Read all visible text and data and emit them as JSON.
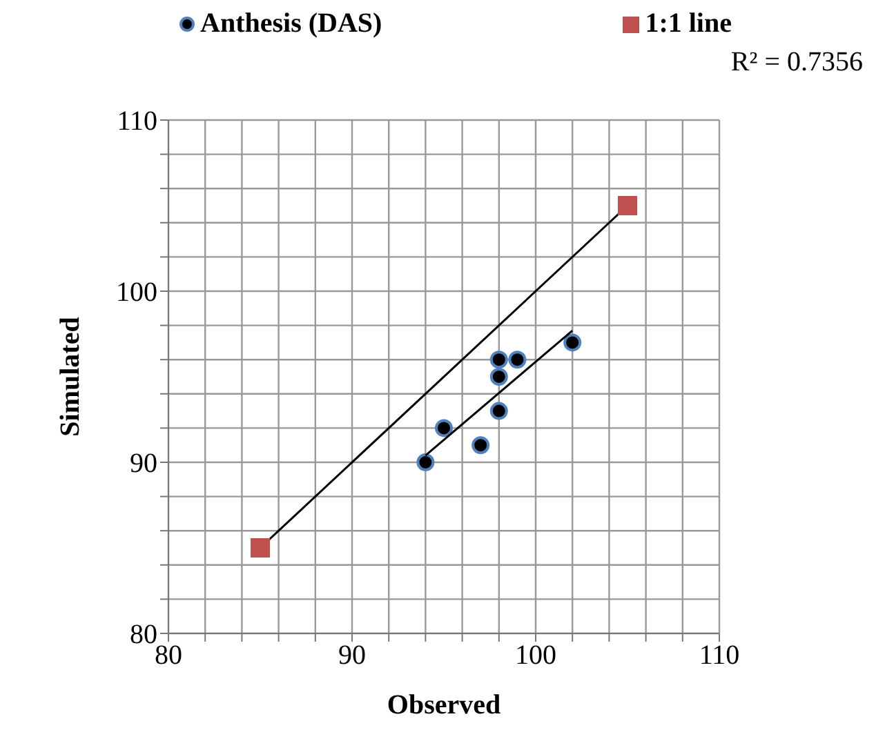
{
  "chart_data": {
    "type": "scatter",
    "xlabel": "Observed",
    "ylabel": "Simulated",
    "xlim": [
      80,
      110
    ],
    "ylim": [
      80,
      110
    ],
    "xticks": [
      80,
      {
        "value": 82,
        "label": null
      },
      {
        "value": 84,
        "label": null
      },
      {
        "value": 86,
        "label": null
      },
      {
        "value": 88,
        "label": null
      },
      90,
      {
        "value": 92,
        "label": null
      },
      {
        "value": 94,
        "label": null
      },
      {
        "value": 96,
        "label": null
      },
      {
        "value": 98,
        "label": null
      },
      100,
      {
        "value": 102,
        "label": null
      },
      {
        "value": 104,
        "label": null
      },
      {
        "value": 106,
        "label": null
      },
      {
        "value": 108,
        "label": null
      },
      110
    ],
    "yticks": [
      80,
      {
        "value": 82,
        "label": null
      },
      {
        "value": 84,
        "label": null
      },
      {
        "value": 86,
        "label": null
      },
      {
        "value": 88,
        "label": null
      },
      90,
      {
        "value": 92,
        "label": null
      },
      {
        "value": 94,
        "label": null
      },
      {
        "value": 96,
        "label": null
      },
      {
        "value": 98,
        "label": null
      },
      100,
      {
        "value": 102,
        "label": null
      },
      {
        "value": 104,
        "label": null
      },
      {
        "value": 106,
        "label": null
      },
      {
        "value": 108,
        "label": null
      },
      110
    ],
    "grid": true,
    "legend": "top",
    "series": [
      {
        "name": "Anthesis (DAS)",
        "marker": "circle",
        "color": "#000000",
        "x": [
          94,
          95,
          97,
          98,
          98,
          98,
          99,
          102
        ],
        "values": [
          90,
          92,
          91,
          93,
          95,
          96,
          96,
          97
        ]
      },
      {
        "type": "line",
        "marker": "none",
        "color": "#000000",
        "x": [
          94,
          102
        ],
        "values": [
          90.4,
          97.7
        ]
      },
      {
        "type": "line",
        "marker": "none",
        "color": "#000000",
        "x": [
          85,
          105
        ],
        "values": [
          85,
          105
        ]
      },
      {
        "name": "1:1 line",
        "marker": "square",
        "color": "#c0504d",
        "x": [
          85,
          105
        ],
        "values": [
          85,
          105
        ]
      }
    ],
    "annotations": [
      "R² = 0.7356"
    ]
  }
}
